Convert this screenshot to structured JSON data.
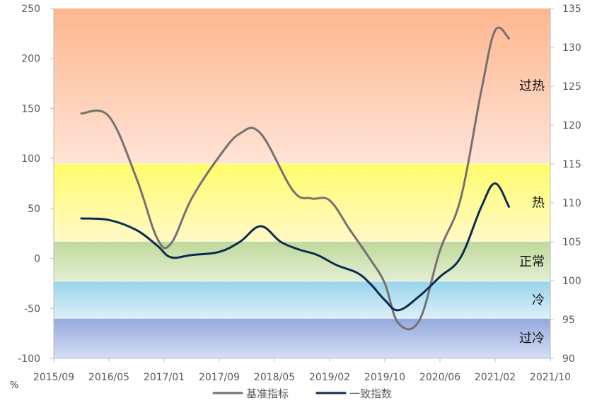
{
  "chart_data": {
    "type": "line",
    "left_axis": {
      "min": -100,
      "max": 250,
      "step": 50,
      "ticks": [
        "-100",
        "-50",
        "0",
        "50",
        "100",
        "150",
        "200",
        "250"
      ],
      "unit_label": "%"
    },
    "right_axis": {
      "min": 90,
      "max": 135,
      "step": 5,
      "ticks": [
        "90",
        "95",
        "100",
        "105",
        "110",
        "115",
        "120",
        "125",
        "130",
        "135"
      ]
    },
    "x_axis": {
      "ticks": [
        "2015/09",
        "2016/05",
        "2017/01",
        "2017/09",
        "2018/05",
        "2019/02",
        "2019/10",
        "2020/06",
        "2021/02",
        "2021/10"
      ]
    },
    "zones": [
      {
        "label": "过热",
        "y_from": 95,
        "y_to": 250,
        "color_top": "#FDB78F",
        "color_bottom": "#FFE3D6"
      },
      {
        "label": "热",
        "y_from": 17,
        "y_to": 95,
        "color_top": "#FFFC6C",
        "color_bottom": "#FFF9C7"
      },
      {
        "label": "正常",
        "y_from": -23,
        "y_to": 17,
        "color_top": "#BFD89A",
        "color_bottom": "#E4EFD4"
      },
      {
        "label": "冷",
        "y_from": -60,
        "y_to": -23,
        "color_top": "#98D4EA",
        "color_bottom": "#DDF0F8"
      },
      {
        "label": "过冷",
        "y_from": -100,
        "y_to": -60,
        "color_top": "#93A8DE",
        "color_bottom": "#D5DEF3"
      }
    ],
    "series": [
      {
        "name": "基准指标",
        "axis": "left",
        "color": "#767171",
        "x": [
          "2016/01",
          "2016/05",
          "2016/09",
          "2016/12",
          "2017/02",
          "2017/05",
          "2017/09",
          "2017/12",
          "2018/03",
          "2018/08",
          "2018/11",
          "2019/02",
          "2019/05",
          "2019/08",
          "2019/10",
          "2019/12",
          "2020/03",
          "2020/06",
          "2020/09",
          "2020/12",
          "2021/02",
          "2021/04"
        ],
        "values": [
          145,
          142,
          80,
          20,
          15,
          60,
          102,
          125,
          125,
          68,
          60,
          58,
          28,
          -2,
          -25,
          -65,
          -62,
          8,
          60,
          168,
          228,
          220
        ]
      },
      {
        "name": "一致指数",
        "axis": "right",
        "color": "#0D2B52",
        "x": [
          "2016/01",
          "2016/05",
          "2016/09",
          "2016/12",
          "2017/02",
          "2017/05",
          "2017/09",
          "2017/12",
          "2018/03",
          "2018/06",
          "2018/09",
          "2018/12",
          "2019/03",
          "2019/06",
          "2019/08",
          "2019/10",
          "2019/12",
          "2020/03",
          "2020/06",
          "2020/09",
          "2020/12",
          "2021/02",
          "2021/04"
        ],
        "values": [
          108,
          107.8,
          106.5,
          104.5,
          103,
          103.3,
          103.7,
          105,
          107,
          105,
          104,
          103.3,
          102,
          101,
          99.5,
          97.5,
          96.2,
          98,
          100.5,
          103,
          109.5,
          112.5,
          109.5
        ]
      }
    ],
    "legend_position": "bottom"
  }
}
